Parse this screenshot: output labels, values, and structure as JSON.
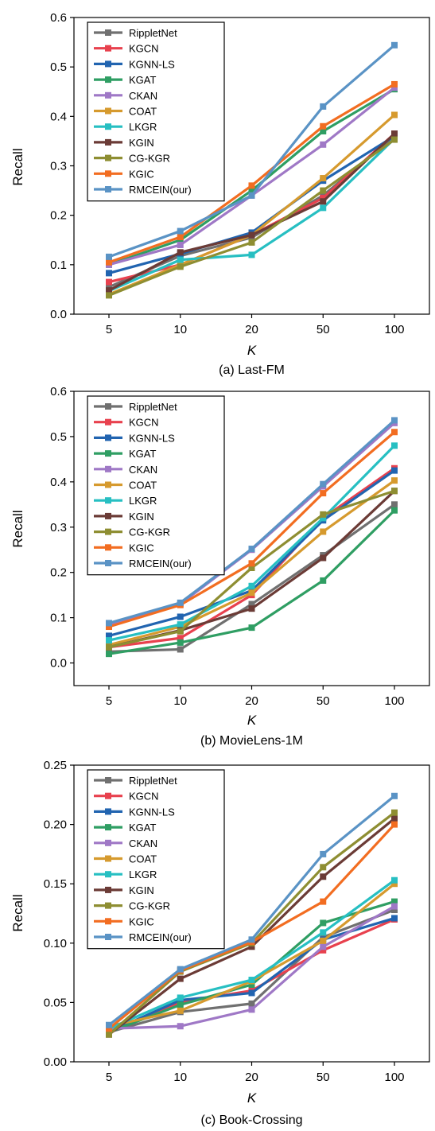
{
  "chart_data": [
    {
      "type": "line",
      "caption": "(a) Last-FM",
      "xlabel": "K",
      "ylabel": "Recall",
      "categories": [
        "5",
        "10",
        "20",
        "50",
        "100"
      ],
      "ylim": [
        0.0,
        0.6
      ],
      "yticks": [
        "0.0",
        "0.1",
        "0.2",
        "0.3",
        "0.4",
        "0.5",
        "0.6"
      ],
      "legend_position": "top-left",
      "series": [
        {
          "name": "RippletNet",
          "color": "#707070",
          "values": [
            0.055,
            0.118,
            0.155,
            0.24,
            0.36
          ]
        },
        {
          "name": "KGCN",
          "color": "#e8414e",
          "values": [
            0.065,
            0.1,
            0.16,
            0.235,
            0.365
          ]
        },
        {
          "name": "KGNN-LS",
          "color": "#2164b0",
          "values": [
            0.083,
            0.122,
            0.165,
            0.27,
            0.36
          ]
        },
        {
          "name": "KGAT",
          "color": "#2f9e63",
          "values": [
            0.1,
            0.15,
            0.25,
            0.37,
            0.455
          ]
        },
        {
          "name": "CKAN",
          "color": "#9f78c6",
          "values": [
            0.1,
            0.14,
            0.24,
            0.343,
            0.458
          ]
        },
        {
          "name": "COAT",
          "color": "#d69a2e",
          "values": [
            0.04,
            0.1,
            0.16,
            0.275,
            0.403
          ]
        },
        {
          "name": "LKGR",
          "color": "#27bfc2",
          "values": [
            0.047,
            0.11,
            0.12,
            0.215,
            0.355
          ]
        },
        {
          "name": "KGIN",
          "color": "#6b3b36",
          "values": [
            0.048,
            0.125,
            0.16,
            0.228,
            0.365
          ]
        },
        {
          "name": "CG-KGR",
          "color": "#8e8e32",
          "values": [
            0.038,
            0.096,
            0.145,
            0.25,
            0.353
          ]
        },
        {
          "name": "KGIC",
          "color": "#f26d21",
          "values": [
            0.105,
            0.156,
            0.26,
            0.38,
            0.465
          ]
        },
        {
          "name": "RMCEIN(our)",
          "color": "#5a93c5",
          "values": [
            0.116,
            0.168,
            0.24,
            0.42,
            0.544
          ]
        }
      ]
    },
    {
      "type": "line",
      "caption": "(b) MovieLens-1M",
      "xlabel": "K",
      "ylabel": "Recall",
      "categories": [
        "5",
        "10",
        "20",
        "50",
        "100"
      ],
      "ylim": [
        -0.05,
        0.6
      ],
      "yticks": [
        "0.0",
        "0.1",
        "0.2",
        "0.3",
        "0.4",
        "0.5",
        "0.6"
      ],
      "legend_position": "top-left",
      "series": [
        {
          "name": "RippletNet",
          "color": "#707070",
          "values": [
            0.025,
            0.03,
            0.13,
            0.238,
            0.35
          ]
        },
        {
          "name": "KGCN",
          "color": "#e8414e",
          "values": [
            0.035,
            0.055,
            0.15,
            0.32,
            0.43
          ]
        },
        {
          "name": "KGNN-LS",
          "color": "#2164b0",
          "values": [
            0.06,
            0.102,
            0.16,
            0.315,
            0.425
          ]
        },
        {
          "name": "KGAT",
          "color": "#2f9e63",
          "values": [
            0.02,
            0.045,
            0.078,
            0.182,
            0.337
          ]
        },
        {
          "name": "CKAN",
          "color": "#9f78c6",
          "values": [
            0.085,
            0.13,
            0.25,
            0.39,
            0.53
          ]
        },
        {
          "name": "COAT",
          "color": "#d69a2e",
          "values": [
            0.04,
            0.08,
            0.155,
            0.29,
            0.403
          ]
        },
        {
          "name": "LKGR",
          "color": "#27bfc2",
          "values": [
            0.05,
            0.085,
            0.17,
            0.32,
            0.48
          ]
        },
        {
          "name": "KGIN",
          "color": "#6b3b36",
          "values": [
            0.035,
            0.072,
            0.12,
            0.232,
            0.38
          ]
        },
        {
          "name": "CG-KGR",
          "color": "#8e8e32",
          "values": [
            0.035,
            0.07,
            0.21,
            0.328,
            0.38
          ]
        },
        {
          "name": "KGIC",
          "color": "#f26d21",
          "values": [
            0.08,
            0.128,
            0.22,
            0.375,
            0.51
          ]
        },
        {
          "name": "RMCEIN(our)",
          "color": "#5a93c5",
          "values": [
            0.088,
            0.133,
            0.252,
            0.395,
            0.536
          ]
        }
      ]
    },
    {
      "type": "line",
      "caption": "(c) Book-Crossing",
      "xlabel": "K",
      "ylabel": "Recall",
      "categories": [
        "5",
        "10",
        "20",
        "50",
        "100"
      ],
      "ylim": [
        0.0,
        0.25
      ],
      "yticks": [
        "0.00",
        "0.05",
        "0.10",
        "0.15",
        "0.20",
        "0.25"
      ],
      "legend_position": "top-left",
      "series": [
        {
          "name": "RippletNet",
          "color": "#707070",
          "values": [
            0.025,
            0.042,
            0.049,
            0.105,
            0.128
          ]
        },
        {
          "name": "KGCN",
          "color": "#e8414e",
          "values": [
            0.025,
            0.05,
            0.06,
            0.094,
            0.12
          ]
        },
        {
          "name": "KGNN-LS",
          "color": "#2164b0",
          "values": [
            0.025,
            0.052,
            0.058,
            0.103,
            0.121
          ]
        },
        {
          "name": "KGAT",
          "color": "#2f9e63",
          "values": [
            0.025,
            0.048,
            0.065,
            0.117,
            0.135
          ]
        },
        {
          "name": "CKAN",
          "color": "#9f78c6",
          "values": [
            0.028,
            0.03,
            0.044,
            0.097,
            0.131
          ]
        },
        {
          "name": "COAT",
          "color": "#d69a2e",
          "values": [
            0.03,
            0.043,
            0.068,
            0.102,
            0.15
          ]
        },
        {
          "name": "LKGR",
          "color": "#27bfc2",
          "values": [
            0.028,
            0.054,
            0.069,
            0.109,
            0.153
          ]
        },
        {
          "name": "KGIN",
          "color": "#6b3b36",
          "values": [
            0.023,
            0.07,
            0.097,
            0.156,
            0.205
          ]
        },
        {
          "name": "CG-KGR",
          "color": "#8e8e32",
          "values": [
            0.023,
            0.076,
            0.1,
            0.164,
            0.21
          ]
        },
        {
          "name": "KGIC",
          "color": "#f26d21",
          "values": [
            0.028,
            0.077,
            0.101,
            0.135,
            0.2
          ]
        },
        {
          "name": "RMCEIN(our)",
          "color": "#5a93c5",
          "values": [
            0.031,
            0.078,
            0.103,
            0.175,
            0.224
          ]
        }
      ]
    }
  ]
}
